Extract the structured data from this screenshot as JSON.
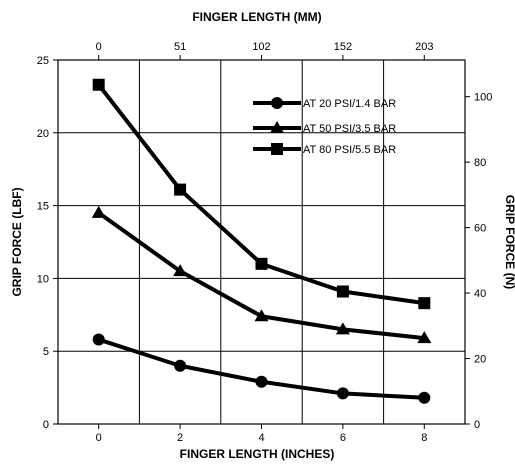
{
  "chart_data": {
    "type": "line",
    "x_bottom": {
      "label": "FINGER LENGTH (INCHES)",
      "ticks": [
        0,
        2,
        4,
        6,
        8
      ],
      "tick_labels": [
        "0",
        "2",
        "4",
        "6",
        "8"
      ],
      "range": [
        -1,
        9
      ]
    },
    "x_top": {
      "label": "FINGER LENGTH (MM)",
      "tick_labels": [
        "0",
        "51",
        "102",
        "152",
        "203"
      ],
      "tick_positions_inches": [
        0,
        2,
        4,
        6,
        8
      ]
    },
    "y_left": {
      "label": "GRIP FORCE (LBF)",
      "ticks": [
        0,
        5,
        10,
        15,
        20,
        25
      ],
      "tick_labels": [
        "0",
        "5",
        "10",
        "15",
        "20",
        "25"
      ],
      "range": [
        0,
        25
      ]
    },
    "y_right": {
      "label": "GRIP FORCE (N)",
      "ticks": [
        0,
        20,
        40,
        60,
        80,
        100
      ],
      "tick_labels": [
        "0",
        "20",
        "40",
        "60",
        "80",
        "100"
      ],
      "range": [
        0,
        111.2
      ]
    },
    "grid": true,
    "legend_position": "top-right",
    "series": [
      {
        "name": "AT 20 PSI/1.4 BAR",
        "marker": "circle",
        "x": [
          0,
          2,
          4,
          6,
          8
        ],
        "y": [
          5.8,
          4.0,
          2.9,
          2.1,
          1.8
        ]
      },
      {
        "name": "AT 50 PSI/3.5 BAR",
        "marker": "triangle",
        "x": [
          0,
          2,
          4,
          6,
          8
        ],
        "y": [
          14.5,
          10.5,
          7.4,
          6.5,
          5.9
        ]
      },
      {
        "name": "AT 80 PSI/5.5 BAR",
        "marker": "square",
        "x": [
          0,
          2,
          4,
          6,
          8
        ],
        "y": [
          23.3,
          16.1,
          11.0,
          9.1,
          8.3
        ]
      }
    ],
    "colors": {
      "line": "#000000",
      "grid": "#000000",
      "background": "#ffffff"
    }
  }
}
